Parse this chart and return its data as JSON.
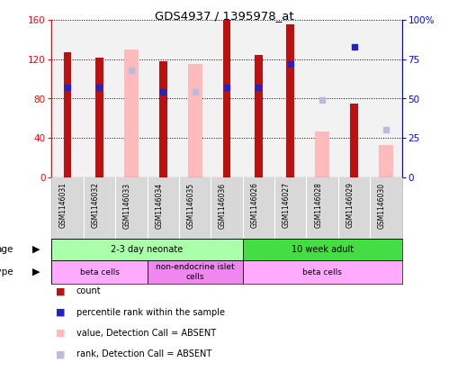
{
  "title": "GDS4937 / 1395978_at",
  "samples": [
    "GSM1146031",
    "GSM1146032",
    "GSM1146033",
    "GSM1146034",
    "GSM1146035",
    "GSM1146036",
    "GSM1146026",
    "GSM1146027",
    "GSM1146028",
    "GSM1146029",
    "GSM1146030"
  ],
  "count_present": [
    127,
    122,
    null,
    118,
    null,
    160,
    124,
    155,
    null,
    75,
    null
  ],
  "count_absent": [
    null,
    null,
    130,
    null,
    115,
    null,
    null,
    null,
    47,
    null,
    33
  ],
  "rank_present": [
    57,
    57,
    null,
    54,
    null,
    57,
    57,
    72,
    null,
    83,
    null
  ],
  "rank_absent": [
    null,
    null,
    68,
    null,
    54,
    null,
    null,
    null,
    49,
    null,
    30
  ],
  "ylim_left": [
    0,
    160
  ],
  "ylim_right": [
    0,
    100
  ],
  "left_ticks": [
    0,
    40,
    80,
    120,
    160
  ],
  "right_ticks": [
    0,
    25,
    50,
    75,
    100
  ],
  "right_tick_labels": [
    "0",
    "25",
    "50",
    "75",
    "100%"
  ],
  "count_present_color": "#bb1111",
  "count_absent_color": "#ffbbbb",
  "rank_present_color": "#2222cc",
  "rank_absent_color": "#bbbbdd",
  "bg_color": "#ffffff",
  "plot_bg": "#f0f0f0",
  "age_groups": [
    {
      "label": "2-3 day neonate",
      "start": 0,
      "end": 6,
      "color": "#aaffaa"
    },
    {
      "label": "10 week adult",
      "start": 6,
      "end": 11,
      "color": "#44dd44"
    }
  ],
  "cell_type_groups": [
    {
      "label": "beta cells",
      "start": 0,
      "end": 3,
      "color": "#ffaaff"
    },
    {
      "label": "non-endocrine islet\ncells",
      "start": 3,
      "end": 6,
      "color": "#ee88ee"
    },
    {
      "label": "beta cells",
      "start": 6,
      "end": 11,
      "color": "#ffaaff"
    }
  ],
  "legend_items": [
    {
      "label": "count",
      "color": "#bb1111"
    },
    {
      "label": "percentile rank within the sample",
      "color": "#2222cc"
    },
    {
      "label": "value, Detection Call = ABSENT",
      "color": "#ffbbbb"
    },
    {
      "label": "rank, Detection Call = ABSENT",
      "color": "#bbbbdd"
    }
  ]
}
